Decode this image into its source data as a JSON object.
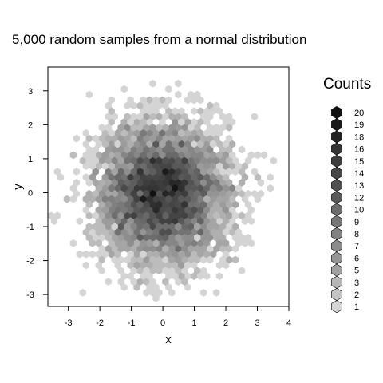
{
  "chart_data": {
    "type": "heatmap",
    "subtype": "hexbin",
    "title": "5,000 random samples from a normal distribution",
    "xlabel": "x",
    "ylabel": "y",
    "xlim": [
      -3.65,
      4.0
    ],
    "ylim": [
      -3.35,
      3.7
    ],
    "x_ticks": [
      -3,
      -2,
      -1,
      0,
      1,
      2,
      3,
      4
    ],
    "y_ticks": [
      -3,
      -2,
      -1,
      0,
      1,
      2,
      3
    ],
    "grid": false,
    "sample_size": 5000,
    "distribution": {
      "mean_x": 0,
      "sd_x": 1,
      "mean_y": 0,
      "sd_y": 1
    },
    "color_scale": {
      "low": "#d4d4d4",
      "high": "#111111"
    },
    "legend": {
      "title": "Counts",
      "placement": "right",
      "entries": [
        20,
        19,
        18,
        16,
        15,
        14,
        13,
        12,
        10,
        9,
        8,
        7,
        6,
        5,
        3,
        2,
        1
      ]
    }
  }
}
